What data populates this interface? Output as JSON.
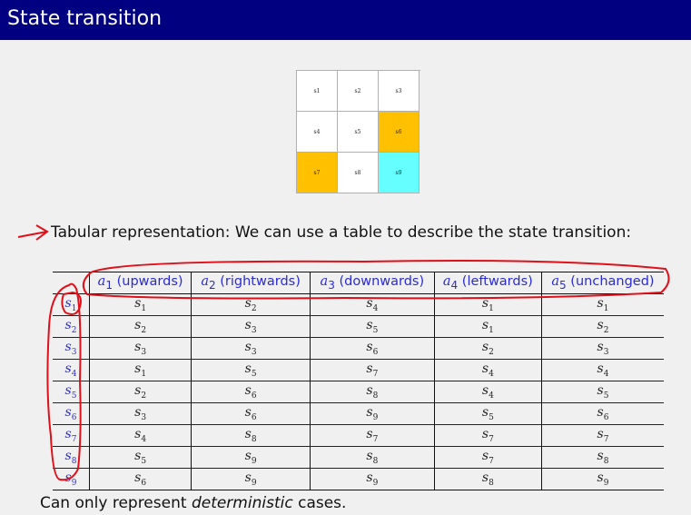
{
  "slide": {
    "title": "State transition"
  },
  "grid": {
    "cells": [
      {
        "label": "s1",
        "type": "accessible"
      },
      {
        "label": "s2",
        "type": "accessible"
      },
      {
        "label": "s3",
        "type": "accessible"
      },
      {
        "label": "s4",
        "type": "accessible"
      },
      {
        "label": "s5",
        "type": "accessible"
      },
      {
        "label": "s6",
        "type": "forbidden"
      },
      {
        "label": "s7",
        "type": "forbidden"
      },
      {
        "label": "s8",
        "type": "accessible"
      },
      {
        "label": "s9",
        "type": "target"
      }
    ],
    "colors": {
      "forbidden": "#ffc000",
      "target": "#66ffff",
      "accessible": "#ffffff"
    }
  },
  "bullet": {
    "text": "Tabular representation:  We can use a table to describe the state transition:",
    "icon": "red-arrow-icon"
  },
  "table": {
    "columns": [
      {
        "action": "a",
        "index": "1",
        "label": " (upwards)"
      },
      {
        "action": "a",
        "index": "2",
        "label": " (rightwards)"
      },
      {
        "action": "a",
        "index": "3",
        "label": " (downwards)"
      },
      {
        "action": "a",
        "index": "4",
        "label": " (leftwards)"
      },
      {
        "action": "a",
        "index": "5",
        "label": " (unchanged)"
      }
    ],
    "rows": [
      {
        "state": "1",
        "next": [
          "1",
          "2",
          "4",
          "1",
          "1"
        ]
      },
      {
        "state": "2",
        "next": [
          "2",
          "3",
          "5",
          "1",
          "2"
        ]
      },
      {
        "state": "3",
        "next": [
          "3",
          "3",
          "6",
          "2",
          "3"
        ]
      },
      {
        "state": "4",
        "next": [
          "1",
          "5",
          "7",
          "4",
          "4"
        ]
      },
      {
        "state": "5",
        "next": [
          "2",
          "6",
          "8",
          "4",
          "5"
        ]
      },
      {
        "state": "6",
        "next": [
          "3",
          "6",
          "9",
          "5",
          "6"
        ]
      },
      {
        "state": "7",
        "next": [
          "4",
          "8",
          "7",
          "7",
          "7"
        ]
      },
      {
        "state": "8",
        "next": [
          "5",
          "9",
          "8",
          "7",
          "8"
        ]
      },
      {
        "state": "9",
        "next": [
          "6",
          "9",
          "9",
          "8",
          "9"
        ]
      }
    ],
    "state_symbol": "s",
    "header_color": "#2b2bd6"
  },
  "note": {
    "prefix": "Can only represent ",
    "emphasis": "deterministic",
    "suffix": " cases."
  },
  "annotations": {
    "color": "#e0101a"
  }
}
